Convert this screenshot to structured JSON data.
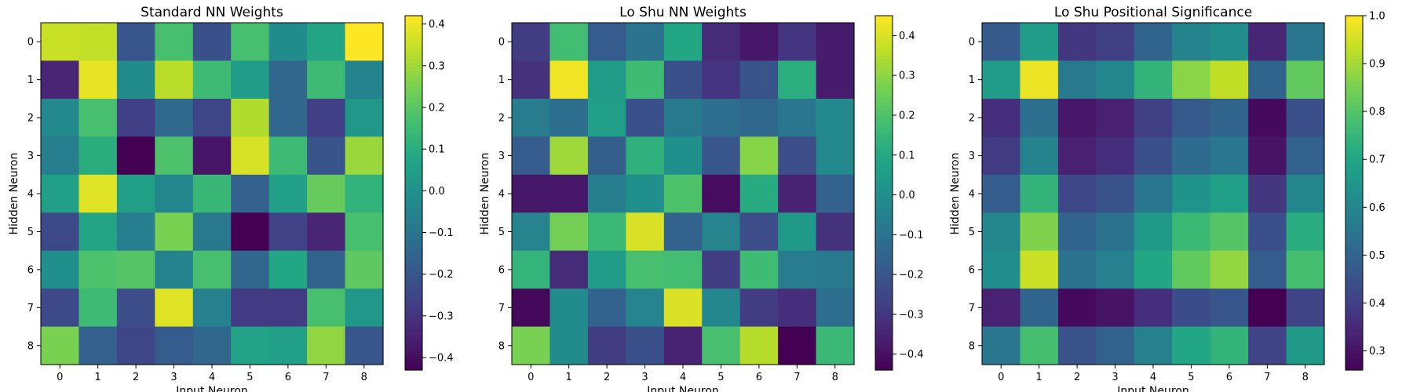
{
  "chart_data": [
    {
      "type": "heatmap",
      "title": "Standard NN Weights",
      "xlabel": "Input Neuron",
      "ylabel": "Hidden Neuron",
      "x": [
        "0",
        "1",
        "2",
        "3",
        "4",
        "5",
        "6",
        "7",
        "8"
      ],
      "y": [
        "0",
        "1",
        "2",
        "3",
        "4",
        "5",
        "6",
        "7",
        "8"
      ],
      "colormap": "viridis",
      "vmin": -0.43,
      "vmax": 0.42,
      "colorbar_ticks": [
        "0.4",
        "0.3",
        "0.2",
        "0.1",
        "0.0",
        "−0.1",
        "−0.2",
        "−0.3",
        "−0.4"
      ],
      "colorbar_tick_values": [
        0.4,
        0.3,
        0.2,
        0.1,
        0.0,
        -0.1,
        -0.2,
        -0.3,
        -0.4
      ],
      "values": [
        [
          0.35,
          0.34,
          -0.2,
          0.17,
          -0.22,
          0.17,
          -0.02,
          0.07,
          0.42
        ],
        [
          -0.34,
          0.39,
          -0.02,
          0.33,
          0.15,
          0.04,
          -0.15,
          0.15,
          -0.05
        ],
        [
          -0.03,
          0.17,
          -0.27,
          -0.14,
          -0.25,
          0.32,
          -0.15,
          -0.27,
          0.02
        ],
        [
          -0.07,
          0.1,
          -0.43,
          0.18,
          -0.38,
          0.37,
          0.15,
          -0.21,
          0.29
        ],
        [
          0.05,
          0.38,
          0.05,
          -0.04,
          0.14,
          -0.17,
          0.05,
          0.22,
          0.12
        ],
        [
          -0.24,
          0.07,
          -0.07,
          0.25,
          -0.09,
          -0.43,
          -0.26,
          -0.34,
          0.17
        ],
        [
          -0.01,
          0.18,
          0.19,
          -0.05,
          0.17,
          -0.15,
          0.08,
          -0.16,
          0.21
        ],
        [
          -0.24,
          0.15,
          -0.23,
          0.38,
          -0.06,
          -0.28,
          -0.28,
          0.17,
          0.02
        ],
        [
          0.25,
          -0.17,
          -0.25,
          -0.18,
          -0.15,
          0.06,
          0.05,
          0.28,
          -0.2
        ]
      ]
    },
    {
      "type": "heatmap",
      "title": "Lo Shu NN Weights",
      "xlabel": "Input Neuron",
      "ylabel": "Hidden Neuron",
      "x": [
        "0",
        "1",
        "2",
        "3",
        "4",
        "5",
        "6",
        "7",
        "8"
      ],
      "y": [
        "0",
        "1",
        "2",
        "3",
        "4",
        "5",
        "6",
        "7",
        "8"
      ],
      "colormap": "viridis",
      "vmin": -0.44,
      "vmax": 0.45,
      "colorbar_ticks": [
        "0.4",
        "0.3",
        "0.2",
        "0.1",
        "0.0",
        "−0.1",
        "−0.2",
        "−0.3",
        "−0.4"
      ],
      "colorbar_tick_values": [
        0.4,
        0.3,
        0.2,
        0.1,
        0.0,
        -0.1,
        -0.2,
        -0.3,
        -0.4
      ],
      "values": [
        [
          -0.28,
          0.18,
          -0.18,
          -0.1,
          0.09,
          -0.33,
          -0.38,
          -0.3,
          -0.37
        ],
        [
          -0.31,
          0.43,
          0.05,
          0.17,
          -0.22,
          -0.3,
          -0.21,
          0.12,
          -0.37
        ],
        [
          -0.07,
          -0.12,
          0.06,
          -0.22,
          -0.08,
          -0.12,
          -0.14,
          -0.09,
          -0.02
        ],
        [
          -0.18,
          0.32,
          -0.17,
          0.13,
          0.0,
          -0.2,
          0.29,
          -0.23,
          -0.02
        ],
        [
          -0.38,
          -0.38,
          -0.06,
          0.0,
          0.2,
          -0.41,
          0.11,
          -0.35,
          -0.16
        ],
        [
          -0.04,
          0.26,
          0.16,
          0.4,
          -0.16,
          -0.04,
          -0.23,
          0.04,
          -0.31
        ],
        [
          0.14,
          -0.33,
          0.05,
          0.19,
          0.18,
          -0.28,
          0.17,
          -0.07,
          -0.08
        ],
        [
          -0.42,
          -0.01,
          -0.16,
          -0.04,
          0.4,
          -0.03,
          -0.28,
          -0.32,
          -0.12
        ],
        [
          0.27,
          -0.01,
          -0.28,
          -0.22,
          -0.35,
          0.19,
          0.35,
          -0.44,
          0.16
        ]
      ]
    },
    {
      "type": "heatmap",
      "title": "Lo Shu Positional Significance",
      "xlabel": "Input Neuron",
      "ylabel": "Hidden Neuron",
      "x": [
        "0",
        "1",
        "2",
        "3",
        "4",
        "5",
        "6",
        "7",
        "8"
      ],
      "y": [
        "0",
        "1",
        "2",
        "3",
        "4",
        "5",
        "6",
        "7",
        "8"
      ],
      "colormap": "viridis",
      "vmin": 0.26,
      "vmax": 1.0,
      "colorbar_ticks": [
        "1.0",
        "0.9",
        "0.8",
        "0.7",
        "0.6",
        "0.5",
        "0.4",
        "0.3"
      ],
      "colorbar_tick_values": [
        1.0,
        0.9,
        0.8,
        0.7,
        0.6,
        0.5,
        0.4,
        0.3
      ],
      "values": [
        [
          0.47,
          0.67,
          0.38,
          0.4,
          0.5,
          0.59,
          0.62,
          0.34,
          0.55
        ],
        [
          0.67,
          0.98,
          0.56,
          0.6,
          0.74,
          0.87,
          0.93,
          0.5,
          0.82
        ],
        [
          0.36,
          0.53,
          0.31,
          0.33,
          0.4,
          0.47,
          0.5,
          0.28,
          0.44
        ],
        [
          0.39,
          0.59,
          0.33,
          0.36,
          0.44,
          0.52,
          0.55,
          0.3,
          0.49
        ],
        [
          0.48,
          0.74,
          0.42,
          0.45,
          0.55,
          0.64,
          0.68,
          0.38,
          0.6
        ],
        [
          0.6,
          0.86,
          0.5,
          0.54,
          0.66,
          0.76,
          0.8,
          0.44,
          0.72
        ],
        [
          0.62,
          0.94,
          0.54,
          0.58,
          0.7,
          0.82,
          0.88,
          0.48,
          0.78
        ],
        [
          0.33,
          0.5,
          0.28,
          0.3,
          0.36,
          0.43,
          0.46,
          0.26,
          0.41
        ],
        [
          0.55,
          0.78,
          0.45,
          0.49,
          0.58,
          0.7,
          0.74,
          0.41,
          0.66
        ]
      ]
    }
  ]
}
